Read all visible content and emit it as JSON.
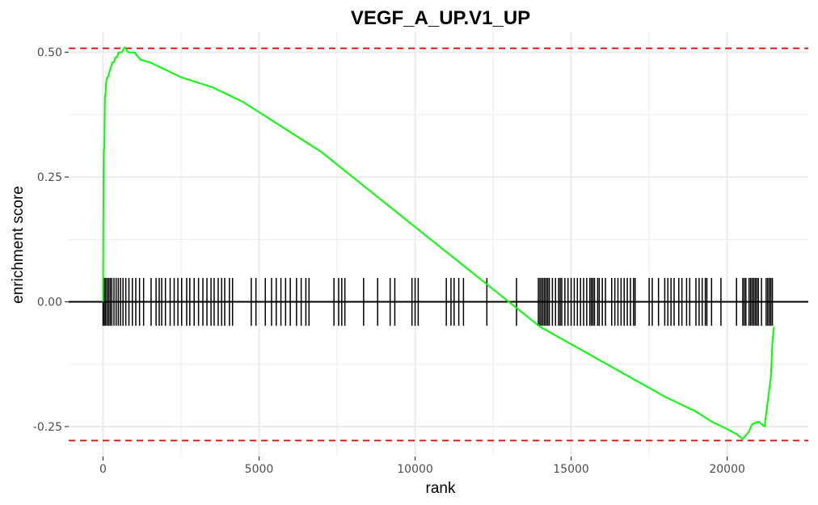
{
  "chart_data": {
    "type": "line",
    "title": "VEGF_A_UP.V1_UP",
    "xlabel": "rank",
    "ylabel": "enrichment score",
    "xlim": [
      -1100,
      22600
    ],
    "ylim": [
      -0.31,
      0.54
    ],
    "x_ticks": [
      0,
      5000,
      10000,
      15000,
      20000
    ],
    "x_tick_labels": [
      "0",
      "5000",
      "10000",
      "15000",
      "20000"
    ],
    "y_ticks": [
      -0.25,
      0.0,
      0.25,
      0.5
    ],
    "y_tick_labels": [
      "-0.25",
      "0.00",
      "0.25",
      "0.50"
    ],
    "grid": true,
    "max_es": 0.508,
    "min_es": -0.278,
    "zero_line": 0.0,
    "colors": {
      "curve": "#00ff00",
      "reference_lines": "#e41a1c",
      "hits": "#000000",
      "grid": "#ebebeb"
    },
    "series": [
      {
        "x": [
          0,
          15,
          25,
          40,
          50,
          60,
          80,
          100,
          130,
          160,
          200,
          250,
          300,
          350,
          400,
          450,
          500,
          550,
          600,
          700,
          800,
          900,
          1000,
          1200,
          1500,
          2000,
          2500,
          3000,
          3500,
          4000,
          4500,
          5000,
          6000,
          7000,
          8000,
          9000,
          10000,
          11000,
          12000,
          13000,
          14000,
          15000,
          16000,
          17000,
          18000,
          19000,
          19500,
          20000,
          20300,
          20500,
          20700,
          20800,
          21000,
          21200,
          21300,
          21400,
          21450,
          21500
        ],
        "y": [
          0.0,
          0.25,
          0.3,
          0.31,
          0.35,
          0.41,
          0.42,
          0.44,
          0.45,
          0.45,
          0.46,
          0.47,
          0.48,
          0.48,
          0.49,
          0.49,
          0.5,
          0.5,
          0.5,
          0.51,
          0.5,
          0.5,
          0.5,
          0.485,
          0.48,
          0.465,
          0.45,
          0.44,
          0.43,
          0.415,
          0.4,
          0.38,
          0.34,
          0.3,
          0.25,
          0.2,
          0.15,
          0.1,
          0.05,
          0.0,
          -0.05,
          -0.085,
          -0.12,
          -0.155,
          -0.19,
          -0.22,
          -0.24,
          -0.255,
          -0.265,
          -0.275,
          -0.26,
          -0.245,
          -0.24,
          -0.25,
          -0.2,
          -0.15,
          -0.08,
          -0.05
        ]
      }
    ],
    "hits": [
      0,
      40,
      80,
      130,
      180,
      230,
      280,
      350,
      420,
      490,
      560,
      640,
      730,
      830,
      940,
      1050,
      1170,
      1300,
      1540,
      1700,
      1800,
      1880,
      2000,
      2150,
      2280,
      2400,
      2520,
      2680,
      2780,
      2920,
      3060,
      3200,
      3330,
      3460,
      3560,
      3690,
      3800,
      3900,
      4050,
      4150,
      4750,
      4900,
      5200,
      5400,
      5550,
      5700,
      5850,
      6000,
      6200,
      6350,
      6500,
      6600,
      7400,
      7550,
      7650,
      7750,
      8350,
      8800,
      9200,
      9350,
      9900,
      10000,
      10100,
      11000,
      11150,
      11250,
      11400,
      11550,
      12300,
      13250,
      13950,
      14000,
      14050,
      14100,
      14150,
      14200,
      14250,
      14300,
      14400,
      14500,
      14600,
      14650,
      14700,
      14800,
      14900,
      15000,
      15100,
      15200,
      15300,
      15400,
      15500,
      15600,
      15650,
      15700,
      15750,
      15850,
      15900,
      16000,
      16100,
      16300,
      16400,
      16500,
      16600,
      16700,
      16800,
      16900,
      17000,
      17050,
      17500,
      17600,
      17800,
      18000,
      18100,
      18200,
      18300,
      18450,
      18550,
      18700,
      18800,
      19000,
      19100,
      19200,
      19300,
      19350,
      19500,
      19800,
      20300,
      20500,
      20550,
      20600,
      20700,
      20750,
      20800,
      20850,
      20900,
      20950,
      21000,
      21100,
      21250,
      21300,
      21350,
      21400,
      21450
    ]
  }
}
